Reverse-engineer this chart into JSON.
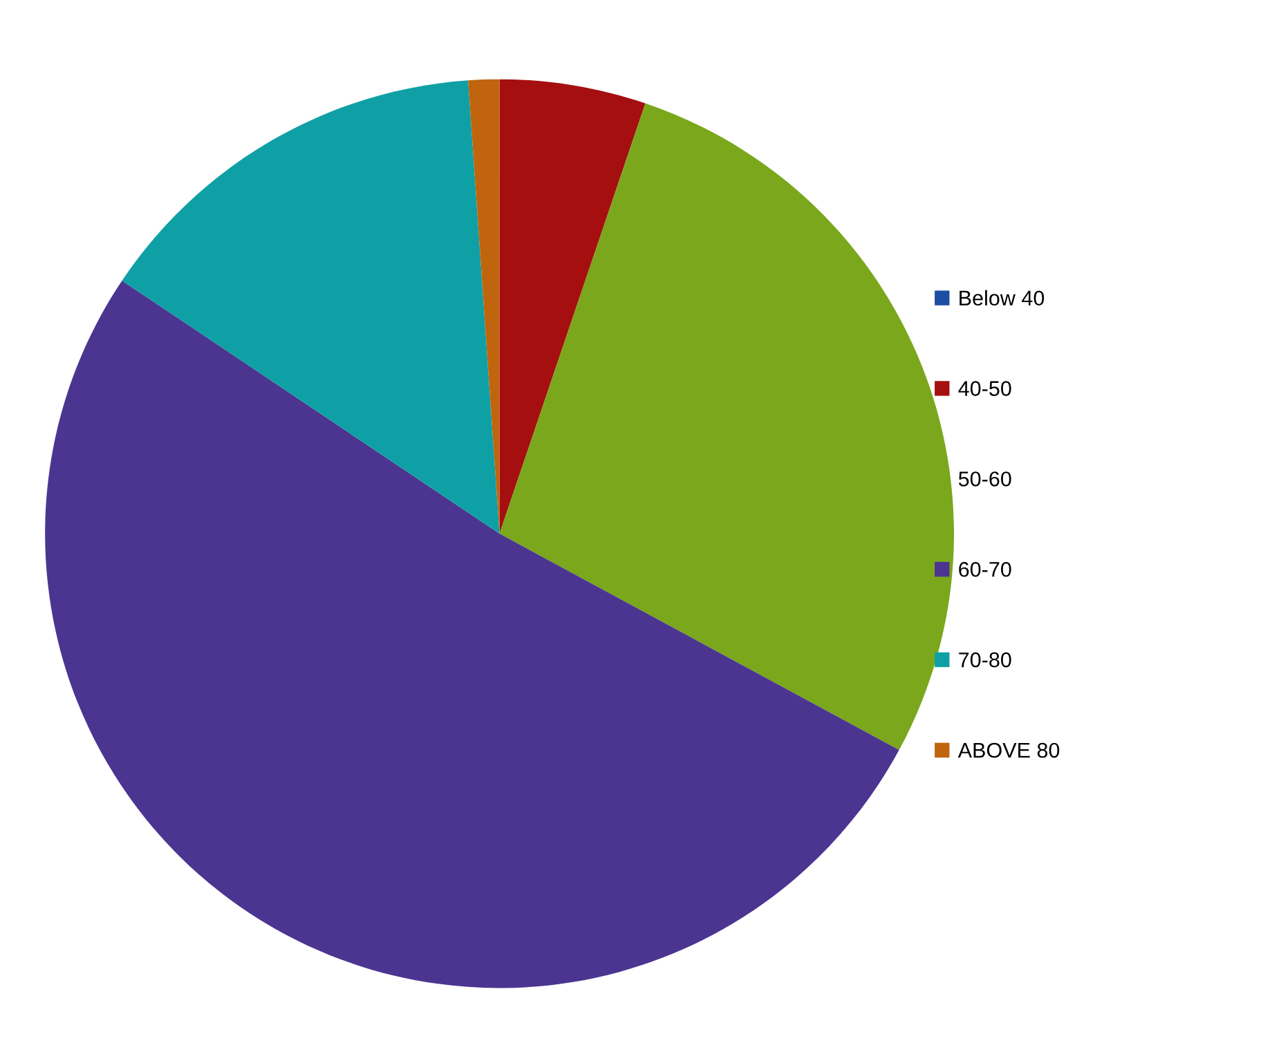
{
  "chart_data": {
    "type": "pie",
    "categories": [
      "Below 40",
      "40-50",
      "50-60",
      "60-70",
      "70-80",
      "ABOVE 80"
    ],
    "values": [
      0,
      5.2,
      27.7,
      51.5,
      14.5,
      1.1
    ],
    "colors": [
      "#1c4fa3",
      "#a50f10",
      "#7aa71b",
      "#4b3591",
      "#0fa0a6",
      "#c0650e"
    ],
    "legend": "right"
  }
}
